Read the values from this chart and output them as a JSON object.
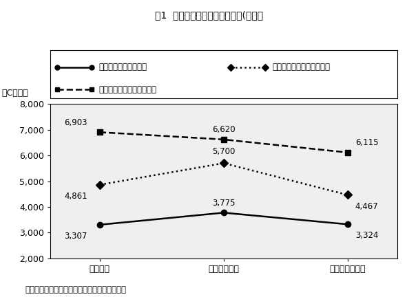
{
  "title": "図1  製造業の都市別職種別賃金(月額）",
  "ylabel": "（Cドル）",
  "source": "（出所）ジェトロ「投資関連コスト比較調査」",
  "categories": [
    "トロント",
    "バンクーバー",
    "モントリオール"
  ],
  "series": [
    {
      "label": "ワーカー（一般工職）",
      "values": [
        3307,
        3775,
        3324
      ],
      "linestyle": "solid",
      "marker": "o",
      "color": "#000000",
      "linewidth": 1.8,
      "markersize": 6
    },
    {
      "label": "エンジニア（中堅技術者）",
      "values": [
        4861,
        5700,
        4467
      ],
      "linestyle": "dotted",
      "marker": "D",
      "color": "#000000",
      "linewidth": 1.8,
      "markersize": 6
    },
    {
      "label": "中間管理職（課長クラス）",
      "values": [
        6903,
        6620,
        6115
      ],
      "linestyle": "dashed",
      "marker": "s",
      "color": "#000000",
      "linewidth": 1.8,
      "markersize": 6
    }
  ],
  "annotations": [
    [
      [
        -25,
        -12
      ],
      [
        0,
        10
      ],
      [
        20,
        -12
      ]
    ],
    [
      [
        -25,
        -12
      ],
      [
        0,
        12
      ],
      [
        20,
        -12
      ]
    ],
    [
      [
        -25,
        10
      ],
      [
        0,
        10
      ],
      [
        20,
        10
      ]
    ]
  ],
  "ylim": [
    2000,
    8000
  ],
  "yticks": [
    2000,
    3000,
    4000,
    5000,
    6000,
    7000,
    8000
  ],
  "background_color": "#ffffff",
  "plot_bg_color": "#efefef",
  "title_fontsize": 10,
  "annot_fontsize": 8.5,
  "tick_fontsize": 9,
  "legend_fontsize": 8.5,
  "source_fontsize": 8.5
}
